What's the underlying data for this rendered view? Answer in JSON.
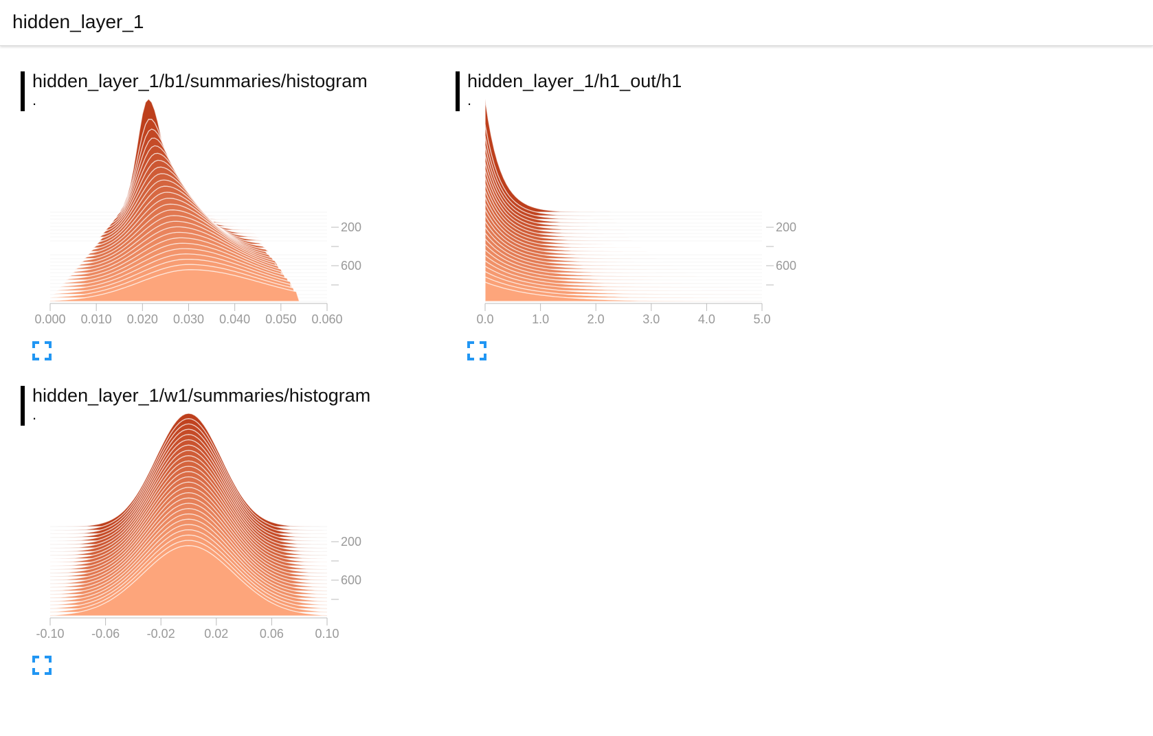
{
  "header": {
    "title": "hidden_layer_1"
  },
  "colors": {
    "accent": "#2196f3",
    "dark": "#bd3f1c",
    "light": "#fda57b",
    "axis": "#999999"
  },
  "cards": [
    {
      "title": "hidden_layer_1/b1/summaries/histogram",
      "subtitle": ".",
      "expand_icon": "fullscreen-icon"
    },
    {
      "title": "hidden_layer_1/h1_out/h1",
      "subtitle": ".",
      "expand_icon": "fullscreen-icon"
    },
    {
      "title": "hidden_layer_1/w1/summaries/histogram",
      "subtitle": ".",
      "expand_icon": "fullscreen-icon"
    }
  ],
  "chart_data": [
    {
      "type": "area",
      "subtype": "histogram-offset",
      "x_ticks": [
        "0.000",
        "0.010",
        "0.020",
        "0.030",
        "0.040",
        "0.050",
        "0.060"
      ],
      "xlim": [
        0.0,
        0.065
      ],
      "y_ticks": [
        "200",
        "600"
      ],
      "steps_range": [
        0,
        900
      ],
      "peak_x": 0.024,
      "shape": "right-skewed, spreading with training"
    },
    {
      "type": "area",
      "subtype": "histogram-offset",
      "x_ticks": [
        "0.0",
        "1.0",
        "2.0",
        "3.0",
        "4.0",
        "5.0"
      ],
      "xlim": [
        0.0,
        5.0
      ],
      "y_ticks": [
        "200",
        "600"
      ],
      "steps_range": [
        0,
        900
      ],
      "peak_x": 0.0,
      "shape": "exponential decay from zero"
    },
    {
      "type": "area",
      "subtype": "histogram-offset",
      "x_ticks": [
        "-0.10",
        "-0.06",
        "-0.02",
        "0.02",
        "0.06",
        "0.10"
      ],
      "xlim": [
        -0.11,
        0.11
      ],
      "y_ticks": [
        "200",
        "600"
      ],
      "steps_range": [
        0,
        900
      ],
      "peak_x": 0.0,
      "shape": "gaussian centered at zero"
    }
  ]
}
